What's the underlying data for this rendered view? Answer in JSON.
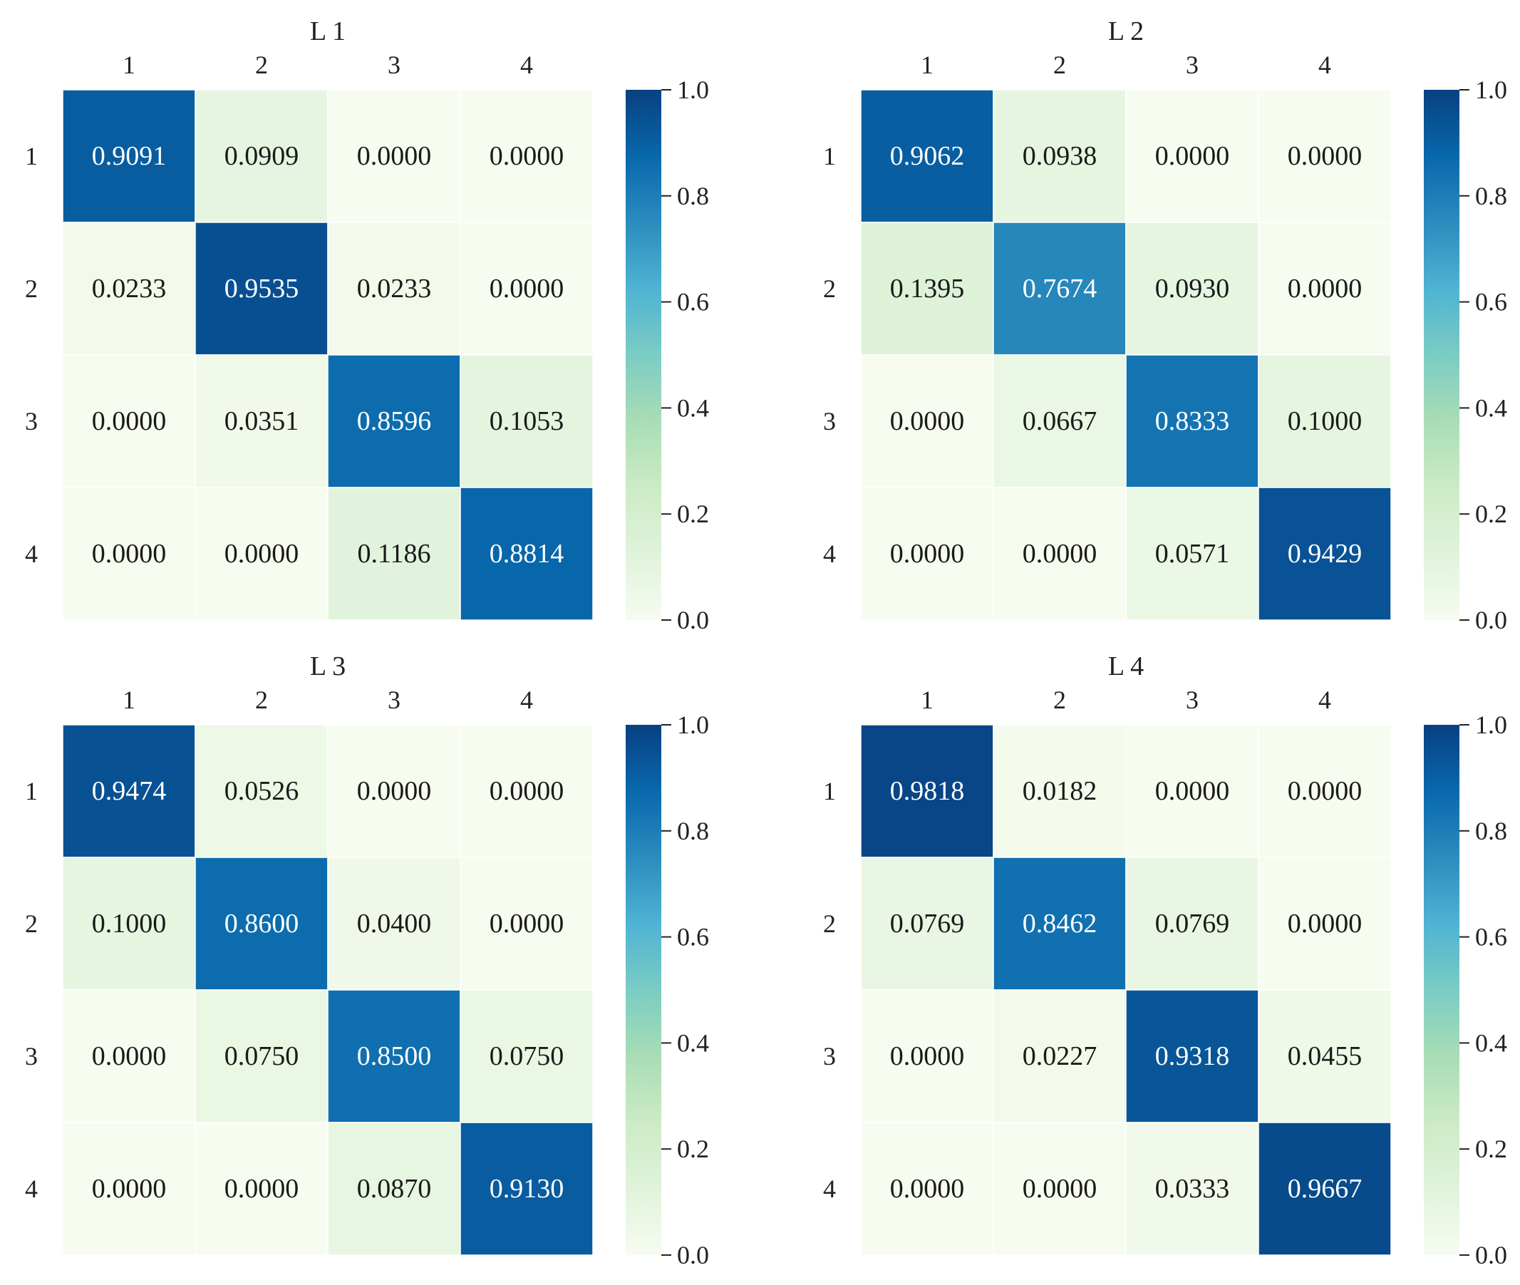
{
  "chart_data": [
    {
      "type": "heatmap",
      "title": "L 1",
      "x_tick_labels": [
        "1",
        "2",
        "3",
        "4"
      ],
      "y_tick_labels": [
        "1",
        "2",
        "3",
        "4"
      ],
      "values": [
        [
          0.9091,
          0.0909,
          0.0,
          0.0
        ],
        [
          0.0233,
          0.9535,
          0.0233,
          0.0
        ],
        [
          0.0,
          0.0351,
          0.8596,
          0.1053
        ],
        [
          0.0,
          0.0,
          0.1186,
          0.8814
        ]
      ],
      "value_labels": [
        [
          "0.9091",
          "0.0909",
          "0.0000",
          "0.0000"
        ],
        [
          "0.0233",
          "0.9535",
          "0.0233",
          "0.0000"
        ],
        [
          "0.0000",
          "0.0351",
          "0.8596",
          "0.1053"
        ],
        [
          "0.0000",
          "0.0000",
          "0.1186",
          "0.8814"
        ]
      ],
      "colorbar_range": [
        0.0,
        1.0
      ],
      "colorbar_ticks": [
        "0.0",
        "0.2",
        "0.4",
        "0.6",
        "0.8",
        "1.0"
      ],
      "colormap": "GnBu",
      "x_tick_position": "top",
      "grid": false
    },
    {
      "type": "heatmap",
      "title": "L 2",
      "x_tick_labels": [
        "1",
        "2",
        "3",
        "4"
      ],
      "y_tick_labels": [
        "1",
        "2",
        "3",
        "4"
      ],
      "values": [
        [
          0.9062,
          0.0938,
          0.0,
          0.0
        ],
        [
          0.1395,
          0.7674,
          0.093,
          0.0
        ],
        [
          0.0,
          0.0667,
          0.8333,
          0.1
        ],
        [
          0.0,
          0.0,
          0.0571,
          0.9429
        ]
      ],
      "value_labels": [
        [
          "0.9062",
          "0.0938",
          "0.0000",
          "0.0000"
        ],
        [
          "0.1395",
          "0.7674",
          "0.0930",
          "0.0000"
        ],
        [
          "0.0000",
          "0.0667",
          "0.8333",
          "0.1000"
        ],
        [
          "0.0000",
          "0.0000",
          "0.0571",
          "0.9429"
        ]
      ],
      "colorbar_range": [
        0.0,
        1.0
      ],
      "colorbar_ticks": [
        "0.0",
        "0.2",
        "0.4",
        "0.6",
        "0.8",
        "1.0"
      ],
      "colormap": "GnBu",
      "x_tick_position": "top",
      "grid": false
    },
    {
      "type": "heatmap",
      "title": "L 3",
      "x_tick_labels": [
        "1",
        "2",
        "3",
        "4"
      ],
      "y_tick_labels": [
        "1",
        "2",
        "3",
        "4"
      ],
      "values": [
        [
          0.9474,
          0.0526,
          0.0,
          0.0
        ],
        [
          0.1,
          0.86,
          0.04,
          0.0
        ],
        [
          0.0,
          0.075,
          0.85,
          0.075
        ],
        [
          0.0,
          0.0,
          0.087,
          0.913
        ]
      ],
      "value_labels": [
        [
          "0.9474",
          "0.0526",
          "0.0000",
          "0.0000"
        ],
        [
          "0.1000",
          "0.8600",
          "0.0400",
          "0.0000"
        ],
        [
          "0.0000",
          "0.0750",
          "0.8500",
          "0.0750"
        ],
        [
          "0.0000",
          "0.0000",
          "0.0870",
          "0.9130"
        ]
      ],
      "colorbar_range": [
        0.0,
        1.0
      ],
      "colorbar_ticks": [
        "0.0",
        "0.2",
        "0.4",
        "0.6",
        "0.8",
        "1.0"
      ],
      "colormap": "GnBu",
      "x_tick_position": "top",
      "grid": false
    },
    {
      "type": "heatmap",
      "title": "L 4",
      "x_tick_labels": [
        "1",
        "2",
        "3",
        "4"
      ],
      "y_tick_labels": [
        "1",
        "2",
        "3",
        "4"
      ],
      "values": [
        [
          0.9818,
          0.0182,
          0.0,
          0.0
        ],
        [
          0.0769,
          0.8462,
          0.0769,
          0.0
        ],
        [
          0.0,
          0.0227,
          0.9318,
          0.0455
        ],
        [
          0.0,
          0.0,
          0.0333,
          0.9667
        ]
      ],
      "value_labels": [
        [
          "0.9818",
          "0.0182",
          "0.0000",
          "0.0000"
        ],
        [
          "0.0769",
          "0.8462",
          "0.0769",
          "0.0000"
        ],
        [
          "0.0000",
          "0.0227",
          "0.9318",
          "0.0455"
        ],
        [
          "0.0000",
          "0.0000",
          "0.0333",
          "0.9667"
        ]
      ],
      "colorbar_range": [
        0.0,
        1.0
      ],
      "colorbar_ticks": [
        "0.0",
        "0.2",
        "0.4",
        "0.6",
        "0.8",
        "1.0"
      ],
      "colormap": "GnBu",
      "x_tick_position": "top",
      "grid": false
    }
  ],
  "colormap_stops": [
    "#f7fcf0",
    "#e0f3db",
    "#ccebc5",
    "#a8ddb5",
    "#7bccc4",
    "#4eb3d3",
    "#2b8cbe",
    "#0868ac",
    "#084081"
  ]
}
